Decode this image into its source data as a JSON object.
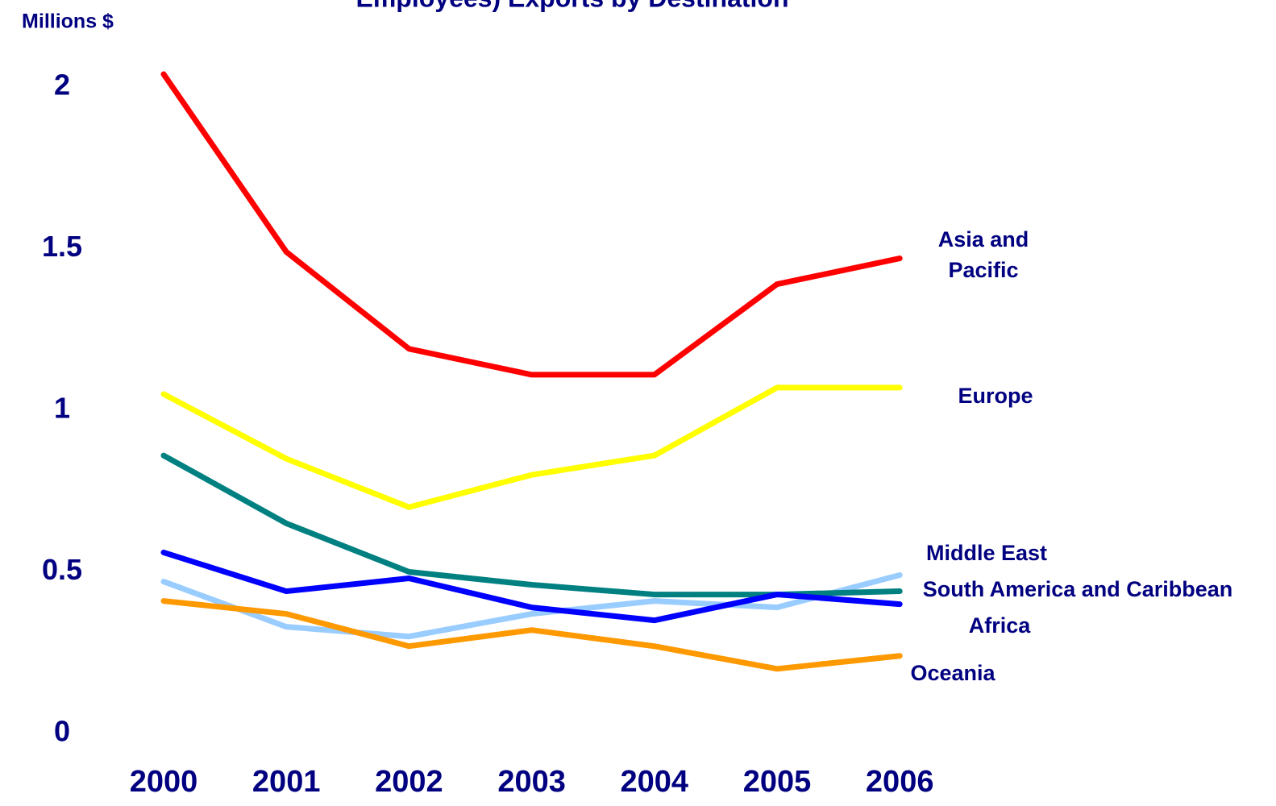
{
  "chart_data": {
    "type": "line",
    "title": "Employees) Exports by Destination",
    "y_label": "Millions $",
    "x": [
      "2000",
      "2001",
      "2002",
      "2003",
      "2004",
      "2005",
      "2006"
    ],
    "ylim": [
      0,
      2
    ],
    "yticks": [
      0,
      0.5,
      1,
      1.5,
      2
    ],
    "grid": false,
    "series": [
      {
        "name": "Asia and Pacific",
        "color": "#ff0000",
        "values": [
          2.04,
          1.49,
          1.19,
          1.11,
          1.11,
          1.39,
          1.47
        ]
      },
      {
        "name": "Europe",
        "color": "#ffff00",
        "values": [
          1.05,
          0.85,
          0.7,
          0.8,
          0.86,
          1.07,
          1.07
        ]
      },
      {
        "name": "Middle East",
        "color": "#99ccff",
        "values": [
          0.47,
          0.33,
          0.3,
          0.37,
          0.41,
          0.39,
          0.49
        ]
      },
      {
        "name": "South America and Caribbean",
        "color": "#008080",
        "values": [
          0.86,
          0.65,
          0.5,
          0.46,
          0.43,
          0.43,
          0.44
        ]
      },
      {
        "name": "Africa",
        "color": "#0000ff",
        "values": [
          0.56,
          0.44,
          0.48,
          0.39,
          0.35,
          0.43,
          0.4
        ]
      },
      {
        "name": "Oceania",
        "color": "#ff9900",
        "values": [
          0.41,
          0.37,
          0.27,
          0.32,
          0.27,
          0.2,
          0.24
        ]
      }
    ]
  }
}
